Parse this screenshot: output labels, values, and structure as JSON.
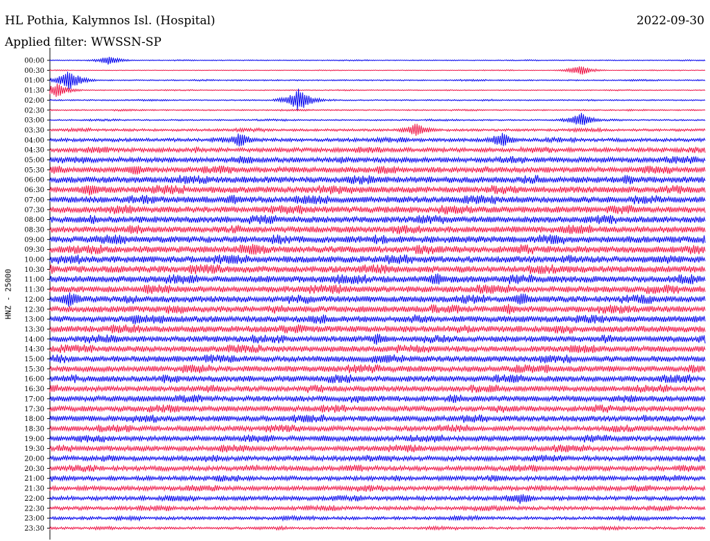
{
  "header": {
    "station": "HL Pothia, Kalymnos Isl. (Hospital)",
    "date": "2022-09-30",
    "filter": "Applied filter: WWSSN-SP"
  },
  "chart_data": {
    "type": "helicorder",
    "title": "HL Pothia, Kalymnos Isl. (Hospital)",
    "date": "2022-09-30",
    "filter": "WWSSN-SP",
    "ylabel": "HNZ - 25000",
    "line_interval_minutes": 30,
    "row_labels": [
      "00:00",
      "00:30",
      "01:00",
      "01:30",
      "02:00",
      "02:30",
      "03:00",
      "03:30",
      "04:00",
      "04:30",
      "05:00",
      "05:30",
      "06:00",
      "06:30",
      "07:00",
      "07:30",
      "08:00",
      "08:30",
      "09:00",
      "09:30",
      "10:00",
      "10:30",
      "11:00",
      "11:30",
      "12:00",
      "12:30",
      "13:00",
      "13:30",
      "14:00",
      "14:30",
      "15:00",
      "15:30",
      "16:00",
      "16:30",
      "17:00",
      "17:30",
      "18:00",
      "18:30",
      "19:00",
      "19:30",
      "20:00",
      "20:30",
      "21:00",
      "21:30",
      "22:00",
      "22:30",
      "23:00",
      "23:30"
    ],
    "colors": [
      "#0000ee",
      "#ee1144"
    ],
    "amplitude_profile": [
      0.5,
      0.4,
      0.7,
      0.5,
      0.7,
      0.7,
      0.8,
      1.4,
      2.0,
      2.5,
      3.0,
      3.2,
      3.6,
      3.6,
      3.6,
      3.6,
      3.6,
      3.6,
      3.8,
      3.8,
      3.8,
      3.8,
      3.8,
      3.6,
      3.6,
      3.6,
      3.6,
      3.6,
      3.4,
      3.4,
      3.4,
      3.4,
      3.4,
      3.2,
      3.2,
      3.2,
      3.2,
      3.0,
      3.0,
      3.0,
      2.8,
      2.8,
      2.6,
      2.6,
      2.4,
      2.2,
      1.8,
      1.4
    ],
    "events": [
      {
        "row": 0,
        "x": 0.09,
        "amp": 6
      },
      {
        "row": 2,
        "x": 0.03,
        "amp": 14
      },
      {
        "row": 3,
        "x": 0.01,
        "amp": 10
      },
      {
        "row": 1,
        "x": 0.81,
        "amp": 7
      },
      {
        "row": 4,
        "x": 0.38,
        "amp": 16
      },
      {
        "row": 6,
        "x": 0.81,
        "amp": 10
      },
      {
        "row": 7,
        "x": 0.56,
        "amp": 10
      },
      {
        "row": 8,
        "x": 0.29,
        "amp": 10
      },
      {
        "row": 8,
        "x": 0.69,
        "amp": 11
      },
      {
        "row": 11,
        "x": 0.13,
        "amp": 8
      },
      {
        "row": 13,
        "x": 0.06,
        "amp": 10
      },
      {
        "row": 14,
        "x": 0.28,
        "amp": 8
      },
      {
        "row": 19,
        "x": 0.31,
        "amp": 9
      },
      {
        "row": 22,
        "x": 0.59,
        "amp": 9
      },
      {
        "row": 24,
        "x": 0.03,
        "amp": 12
      },
      {
        "row": 24,
        "x": 0.72,
        "amp": 10
      },
      {
        "row": 25,
        "x": 0.7,
        "amp": 9
      },
      {
        "row": 26,
        "x": 0.13,
        "amp": 8
      },
      {
        "row": 28,
        "x": 0.5,
        "amp": 9
      },
      {
        "row": 38,
        "x": 0.42,
        "amp": 5
      },
      {
        "row": 44,
        "x": 0.72,
        "amp": 9
      }
    ]
  }
}
